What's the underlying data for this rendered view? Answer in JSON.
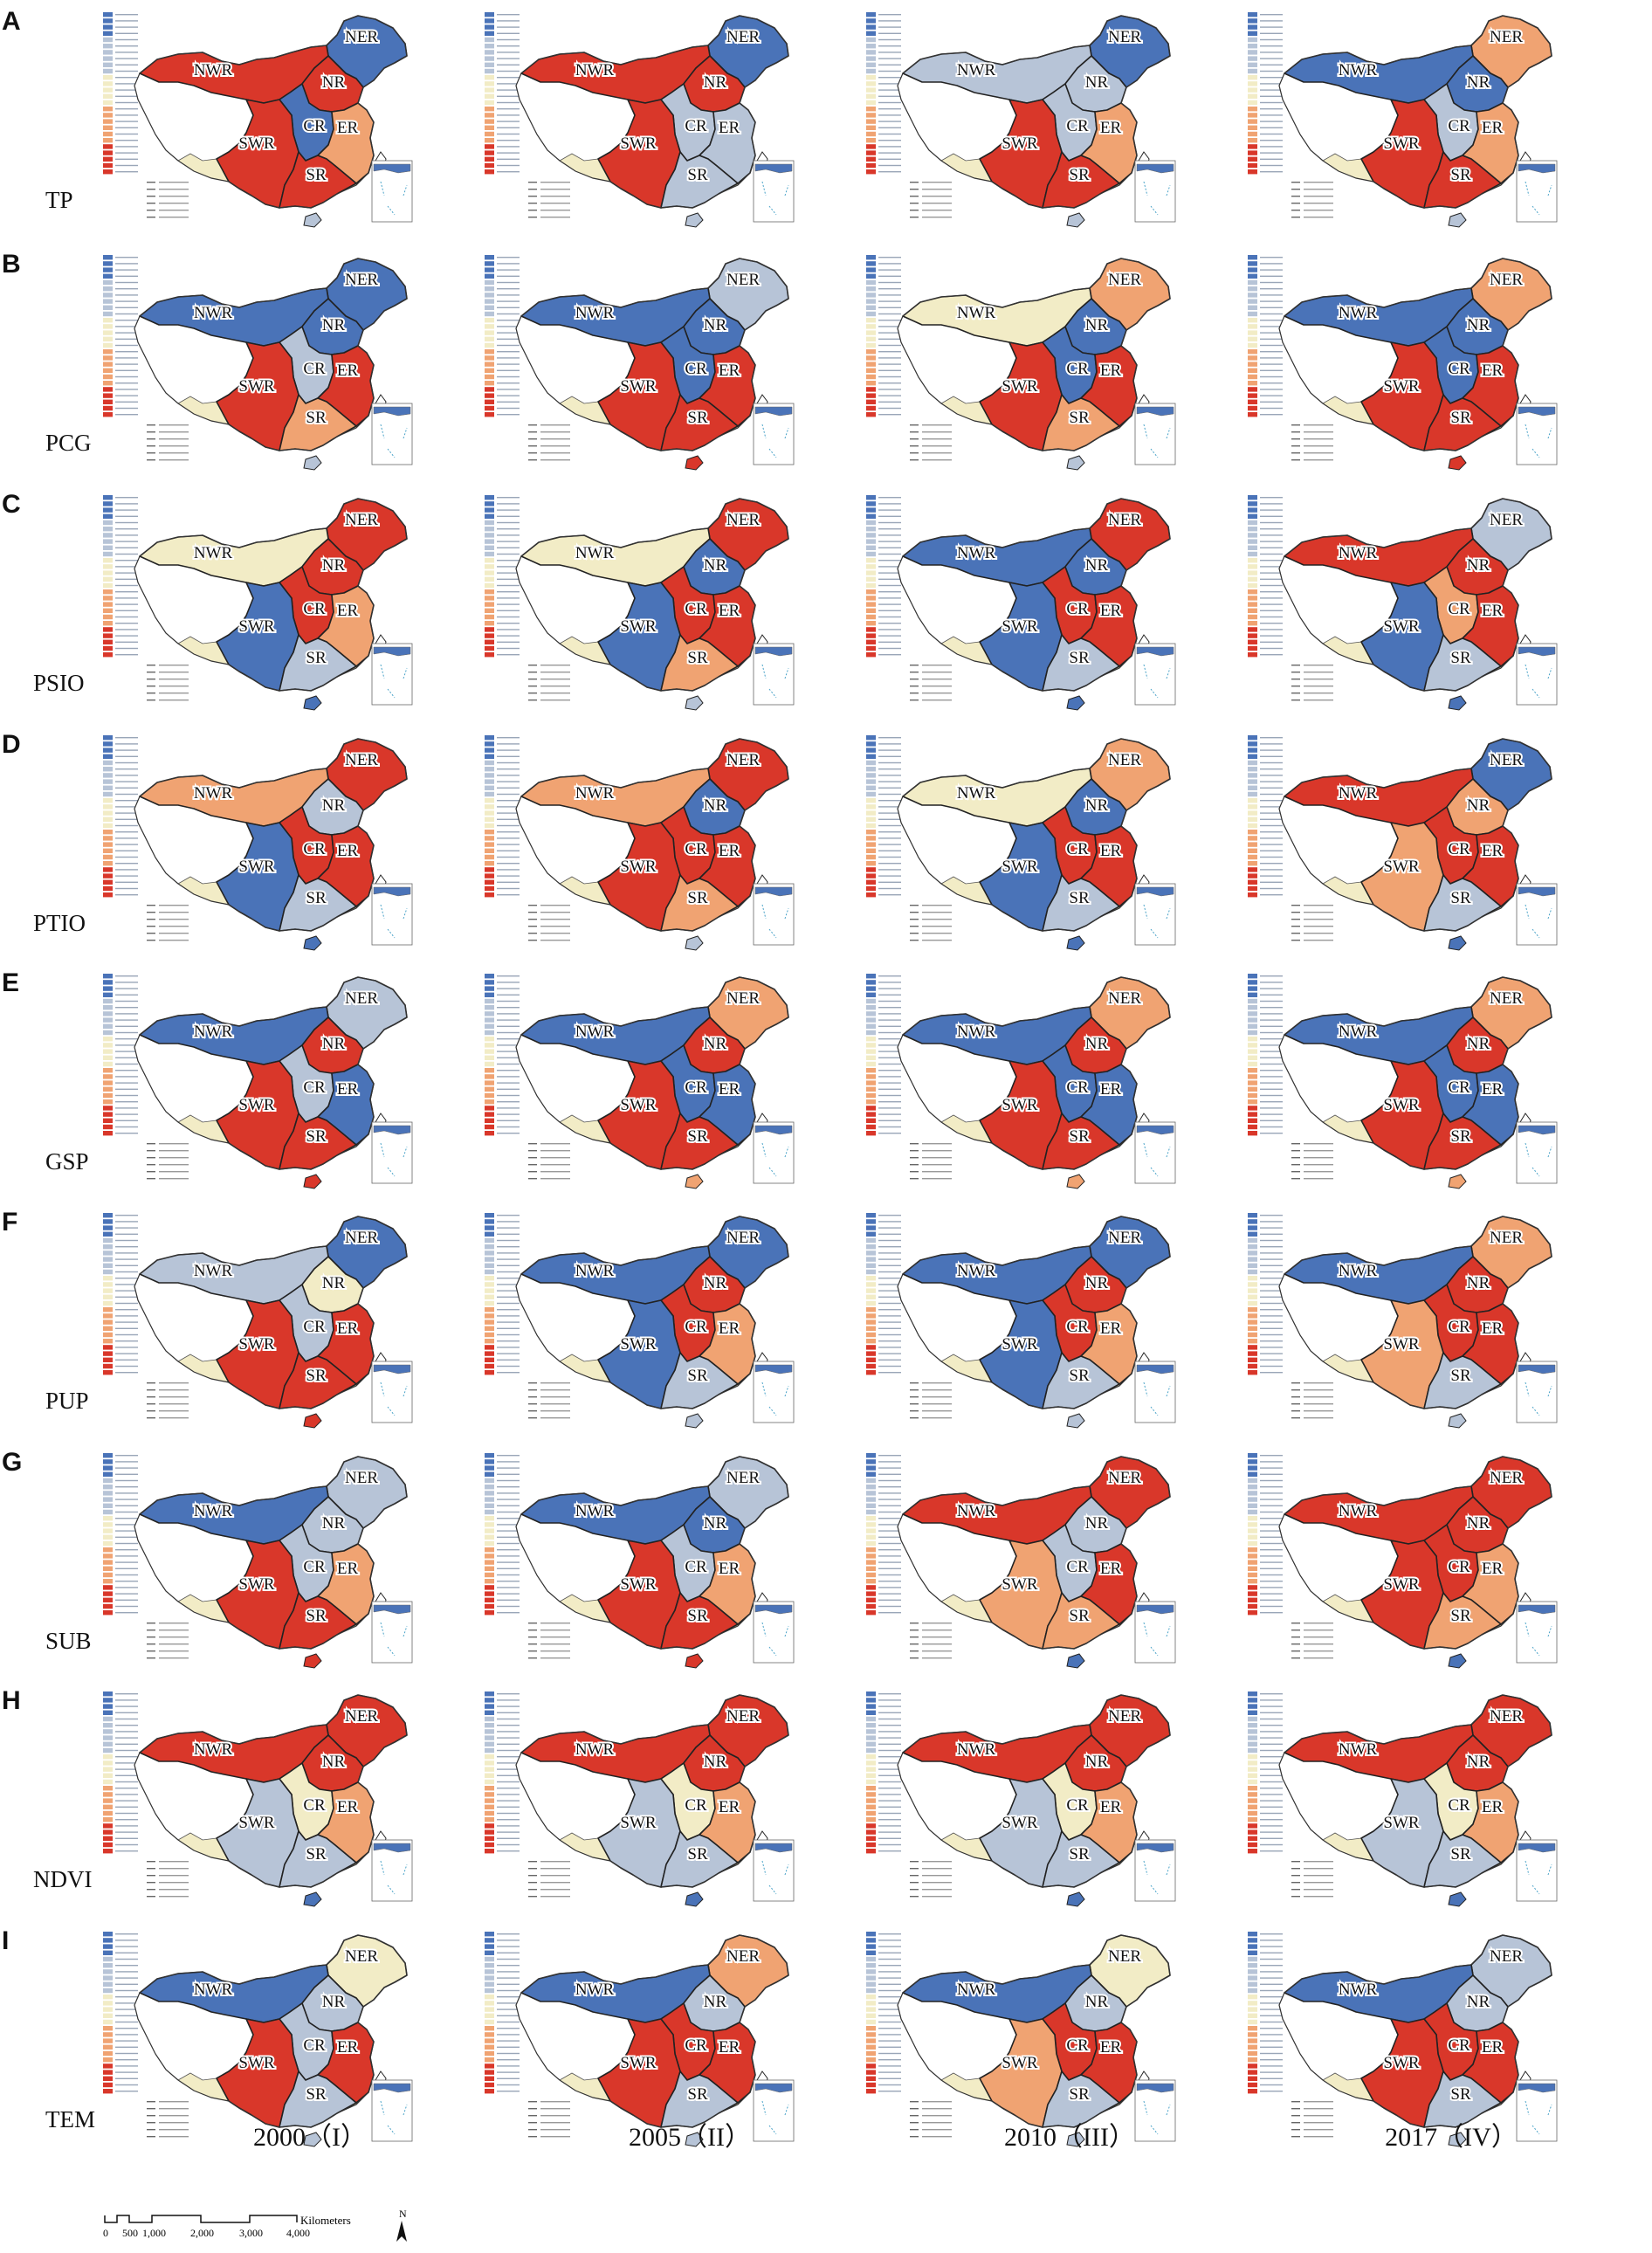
{
  "figure": {
    "rows": [
      {
        "letter": "A",
        "variable": "TP"
      },
      {
        "letter": "B",
        "variable": "PCG"
      },
      {
        "letter": "C",
        "variable": "PSIO"
      },
      {
        "letter": "D",
        "variable": "PTIO"
      },
      {
        "letter": "E",
        "variable": "GSP"
      },
      {
        "letter": "F",
        "variable": "PUP"
      },
      {
        "letter": "G",
        "variable": "SUB"
      },
      {
        "letter": "H",
        "variable": "NDVI"
      },
      {
        "letter": "I",
        "variable": "TEM"
      }
    ],
    "columns": [
      "2000（I）",
      "2005（II）",
      "2010（III）",
      "2017（IV）"
    ],
    "regions": [
      "NER",
      "NWR",
      "NR",
      "CR",
      "ER",
      "SWR",
      "SR"
    ],
    "colors": {
      "high": "#d9372a",
      "mid_high": "#f0a372",
      "mid": "#f2ecc6",
      "mid_low": "#b7c4d7",
      "low": "#4a73b8",
      "empty": "#ffffff",
      "boundary": "#222222"
    },
    "panel_fill": {
      "TP": [
        [
          "low",
          "high",
          "high",
          "low",
          "mid_high",
          "high",
          "high",
          "mid_low"
        ],
        [
          "low",
          "high",
          "high",
          "mid_low",
          "mid_low",
          "high",
          "mid_low",
          "mid_low"
        ],
        [
          "low",
          "mid_low",
          "mid_low",
          "mid_low",
          "mid_high",
          "high",
          "high",
          "mid_low"
        ],
        [
          "mid_high",
          "low",
          "low",
          "mid_low",
          "mid_high",
          "high",
          "high",
          "mid_low"
        ]
      ],
      "PCG": [
        [
          "low",
          "low",
          "low",
          "mid_low",
          "high",
          "high",
          "mid_high",
          "mid_low"
        ],
        [
          "mid_low",
          "low",
          "low",
          "low",
          "high",
          "high",
          "high",
          "high"
        ],
        [
          "mid_high",
          "mid",
          "low",
          "low",
          "high",
          "high",
          "mid_high",
          "mid_low"
        ],
        [
          "mid_high",
          "low",
          "low",
          "low",
          "high",
          "high",
          "high",
          "high"
        ]
      ],
      "PSIO": [
        [
          "high",
          "mid",
          "high",
          "high",
          "mid_high",
          "low",
          "mid_low",
          "low"
        ],
        [
          "high",
          "mid",
          "low",
          "high",
          "high",
          "low",
          "mid_high",
          "mid_low"
        ],
        [
          "high",
          "low",
          "low",
          "high",
          "high",
          "low",
          "mid_low",
          "low"
        ],
        [
          "mid_low",
          "high",
          "high",
          "mid_high",
          "high",
          "low",
          "mid_low",
          "low"
        ]
      ],
      "PTIO": [
        [
          "high",
          "mid_high",
          "mid_low",
          "high",
          "high",
          "low",
          "mid_low",
          "low"
        ],
        [
          "high",
          "mid_high",
          "low",
          "high",
          "high",
          "high",
          "mid_high",
          "mid_low"
        ],
        [
          "mid_high",
          "mid",
          "low",
          "high",
          "high",
          "low",
          "mid_low",
          "low"
        ],
        [
          "low",
          "high",
          "mid_high",
          "high",
          "high",
          "mid_high",
          "mid_low",
          "low"
        ]
      ],
      "GSP": [
        [
          "mid_low",
          "low",
          "high",
          "mid_low",
          "low",
          "high",
          "high",
          "high"
        ],
        [
          "mid_high",
          "low",
          "high",
          "low",
          "low",
          "high",
          "high",
          "mid_high"
        ],
        [
          "mid_high",
          "low",
          "high",
          "low",
          "low",
          "high",
          "high",
          "mid_high"
        ],
        [
          "mid_high",
          "low",
          "high",
          "low",
          "low",
          "high",
          "high",
          "mid_high"
        ]
      ],
      "PUP": [
        [
          "low",
          "mid_low",
          "mid",
          "mid_low",
          "high",
          "high",
          "high",
          "high"
        ],
        [
          "low",
          "low",
          "high",
          "high",
          "mid_high",
          "low",
          "mid_low",
          "mid_low"
        ],
        [
          "low",
          "low",
          "high",
          "high",
          "mid_high",
          "low",
          "mid_low",
          "mid_low"
        ],
        [
          "mid_high",
          "low",
          "high",
          "high",
          "high",
          "mid_high",
          "mid_low",
          "mid_low"
        ]
      ],
      "SUB": [
        [
          "mid_low",
          "low",
          "mid_low",
          "mid_low",
          "mid_high",
          "high",
          "high",
          "high"
        ],
        [
          "mid_low",
          "low",
          "low",
          "mid_low",
          "mid_high",
          "high",
          "high",
          "high"
        ],
        [
          "high",
          "high",
          "mid_low",
          "mid_low",
          "high",
          "mid_high",
          "mid_high",
          "low"
        ],
        [
          "high",
          "high",
          "high",
          "high",
          "mid_high",
          "high",
          "mid_high",
          "low"
        ]
      ],
      "NDVI": [
        [
          "high",
          "high",
          "high",
          "mid",
          "mid_high",
          "mid_low",
          "mid_low",
          "low"
        ],
        [
          "high",
          "high",
          "high",
          "mid",
          "mid_high",
          "mid_low",
          "mid_low",
          "low"
        ],
        [
          "high",
          "high",
          "high",
          "mid",
          "mid_high",
          "mid_low",
          "mid_low",
          "low"
        ],
        [
          "high",
          "high",
          "high",
          "mid",
          "mid_high",
          "mid_low",
          "mid_low",
          "low"
        ]
      ],
      "TEM": [
        [
          "mid",
          "low",
          "mid_low",
          "mid_low",
          "high",
          "high",
          "mid_low",
          "mid_low"
        ],
        [
          "mid_high",
          "low",
          "mid_low",
          "high",
          "high",
          "high",
          "mid_low",
          "mid_low"
        ],
        [
          "mid",
          "low",
          "mid_low",
          "high",
          "high",
          "mid_high",
          "mid_low",
          "mid_low"
        ],
        [
          "mid_low",
          "low",
          "mid_low",
          "high",
          "high",
          "high",
          "mid_low",
          "mid_low"
        ]
      ]
    },
    "scale_bar": {
      "ticks": [
        "0",
        "500",
        "1,000",
        "2,000",
        "3,000",
        "4,000"
      ],
      "unit": "Kilometers",
      "north": "N"
    }
  }
}
